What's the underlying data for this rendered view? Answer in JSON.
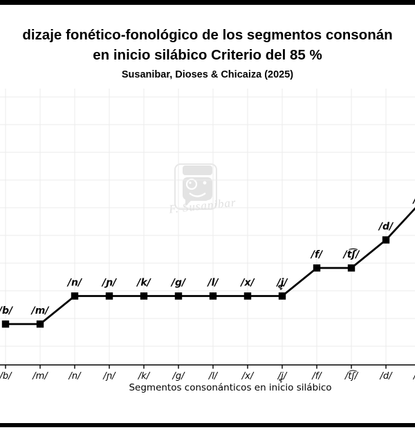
{
  "header": {
    "title_line1": "dizaje fonético-fonológico de los segmentos consonán",
    "title_line2": "en inicio silábico Criterio del 85 %",
    "subtitle": "Susanibar, Dioses & Chicaiza (2025)"
  },
  "watermark": {
    "signature": "F. Susanibar"
  },
  "chart_data": {
    "type": "line",
    "title": "dizaje fonético-fonológico de los segmentos consonán en inicio silábico Criterio del 85 %",
    "subtitle": "Susanibar, Dioses & Chicaiza (2025)",
    "xlabel": "Segmentos consonánticos en inicio silábico",
    "ylabel": "",
    "y_axis_visible": false,
    "grid": true,
    "legend": false,
    "marker": "square",
    "line_color": "#000000",
    "grid_color": "#ebebeb",
    "categories": [
      "/b/",
      "/m/",
      "/n/",
      "/ɲ/",
      "/k/",
      "/g/",
      "/l/",
      "/x/",
      "/ʝ̞/",
      "/f/",
      "/t͡ʃ/",
      "/d/"
    ],
    "point_labels": [
      "/b/",
      "/m/",
      "/n/",
      "/ɲ/",
      "/k/",
      "/g/",
      "/l/",
      "/x/",
      "/ʝ̞/",
      "/f/",
      "/t͡ʃ/",
      "/d/"
    ],
    "values": [
      1,
      1,
      2,
      2,
      2,
      2,
      2,
      2,
      2,
      3,
      3,
      4
    ],
    "values_note": "y-axis is cropped out of the frame; values are relative acquisition steps read from the stepped line",
    "continues_offscreen_right": true,
    "partial_next_label": "/"
  }
}
